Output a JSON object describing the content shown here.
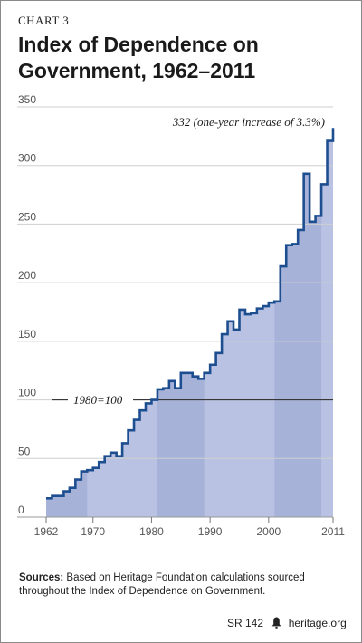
{
  "header": {
    "chart_label": "CHART 3",
    "title_line1": "Index of Dependence on",
    "title_line2": "Government, 1962–2011"
  },
  "chart_data": {
    "type": "area",
    "title": "Index of Dependence on Government, 1962–2011",
    "xlabel": "",
    "ylabel": "",
    "x": [
      1962,
      1963,
      1964,
      1965,
      1966,
      1967,
      1968,
      1969,
      1970,
      1971,
      1972,
      1973,
      1974,
      1975,
      1976,
      1977,
      1978,
      1979,
      1980,
      1981,
      1982,
      1983,
      1984,
      1985,
      1986,
      1987,
      1988,
      1989,
      1990,
      1991,
      1992,
      1993,
      1994,
      1995,
      1996,
      1997,
      1998,
      1999,
      2000,
      2001,
      2002,
      2003,
      2004,
      2005,
      2006,
      2007,
      2008,
      2009,
      2010,
      2011
    ],
    "values": [
      16,
      18,
      18,
      22,
      25,
      32,
      39,
      40,
      42,
      47,
      52,
      55,
      52,
      63,
      74,
      83,
      91,
      97,
      100,
      109,
      110,
      116,
      110,
      123,
      123,
      120,
      118,
      123,
      130,
      140,
      156,
      167,
      160,
      177,
      173,
      174,
      178,
      180,
      183,
      184,
      214,
      232,
      233,
      245,
      293,
      252,
      257,
      284,
      321,
      332
    ],
    "xlim": [
      1962,
      2011
    ],
    "ylim": [
      0,
      350
    ],
    "y_ticks": [
      0,
      50,
      100,
      150,
      200,
      250,
      300,
      350
    ],
    "x_ticks": [
      1962,
      1970,
      1980,
      1990,
      2000,
      2011
    ],
    "grid": true,
    "reference_line": {
      "value": 100,
      "label": "1980=100"
    },
    "annotation": {
      "text": "332 (one-year increase of 3.3%)",
      "year": 2011,
      "value": 332
    },
    "shaded_bands": [
      [
        1962,
        1969
      ],
      [
        1981,
        1989
      ],
      [
        2001,
        2009
      ]
    ],
    "colors": {
      "line": "#1d4e8f",
      "fill": "#b9c2e2",
      "fill_band": "#a7b2d8",
      "grid": "#cfcfcf",
      "reference": "#222222"
    }
  },
  "sources": {
    "label": "Sources:",
    "text": "Based on Heritage Foundation calculations sourced throughout the Index of Dependence on Government."
  },
  "footer": {
    "report_id": "SR 142",
    "site": "heritage.org",
    "icon": "liberty-bell-icon"
  }
}
